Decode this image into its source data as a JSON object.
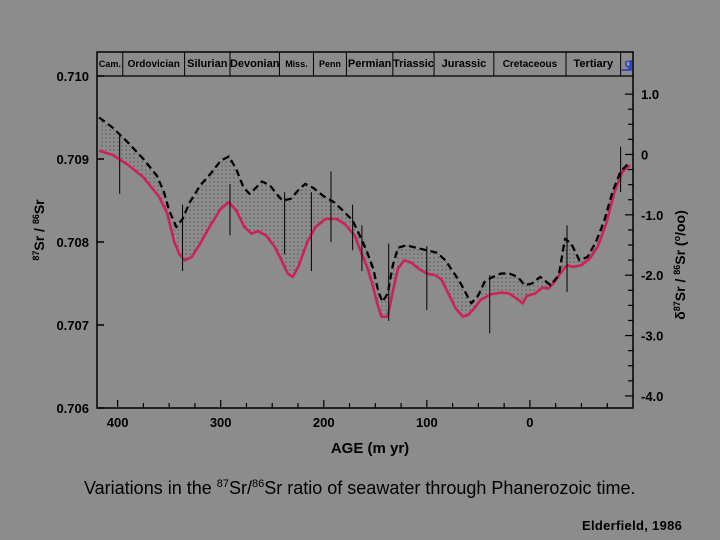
{
  "chart_data": {
    "type": "line",
    "xlabel": "AGE (m yr)",
    "x_ticks": [
      400,
      300,
      200,
      100,
      0
    ],
    "xlim": [
      420,
      -100
    ],
    "ylabel_left": {
      "pre": "87",
      "a": "Sr / ",
      "sup": "86",
      "b": "Sr"
    },
    "ylim_left": [
      0.706,
      0.71
    ],
    "y_ticks_left": [
      "0.710",
      "0.709",
      "0.708",
      "0.707",
      "0.706"
    ],
    "ylabel_right": {
      "delta": "δ",
      "sup1": "87",
      "a": "Sr / ",
      "sup2": "86",
      "b": "Sr (",
      "sup3": "o",
      "c": "/oo)"
    },
    "ylim_right": [
      -4.2,
      1.3
    ],
    "y_ticks_right": [
      "1.0",
      "0",
      "-1.0",
      "-2.0",
      "-3.0",
      "-4.0"
    ],
    "periods": [
      {
        "name": "Cam.",
        "start": 420,
        "end": 395
      },
      {
        "name": "Ordovician",
        "start": 395,
        "end": 335
      },
      {
        "name": "Silurian",
        "start": 335,
        "end": 291
      },
      {
        "name": "Devonian",
        "start": 291,
        "end": 243
      },
      {
        "name": "Miss.",
        "start": 243,
        "end": 210
      },
      {
        "name": "Penn",
        "start": 210,
        "end": 178
      },
      {
        "name": "Permian",
        "start": 178,
        "end": 133
      },
      {
        "name": "Triassic",
        "start": 133,
        "end": 93
      },
      {
        "name": "Jurassic",
        "start": 93,
        "end": 35
      },
      {
        "name": "Cretaceous",
        "start": 35,
        "end": -35
      },
      {
        "name": "Tertiary",
        "start": -35,
        "end": -88
      },
      {
        "name": "Q",
        "start": -88,
        "end": -100
      }
    ],
    "series": [
      {
        "name": "",
        "style": "solid",
        "color": "#cc2255",
        "points": [
          [
            418,
            0.7091
          ],
          [
            405,
            0.70905
          ],
          [
            390,
            0.70893
          ],
          [
            375,
            0.70878
          ],
          [
            360,
            0.70855
          ],
          [
            352,
            0.70835
          ],
          [
            345,
            0.708
          ],
          [
            340,
            0.70785
          ],
          [
            335,
            0.70778
          ],
          [
            328,
            0.70782
          ],
          [
            320,
            0.70798
          ],
          [
            310,
            0.7082
          ],
          [
            300,
            0.7084
          ],
          [
            292,
            0.70848
          ],
          [
            285,
            0.70838
          ],
          [
            277,
            0.70818
          ],
          [
            270,
            0.7081
          ],
          [
            264,
            0.70813
          ],
          [
            256,
            0.70808
          ],
          [
            248,
            0.70795
          ],
          [
            241,
            0.70778
          ],
          [
            235,
            0.70762
          ],
          [
            230,
            0.70758
          ],
          [
            224,
            0.70772
          ],
          [
            216,
            0.708
          ],
          [
            208,
            0.70818
          ],
          [
            198,
            0.70828
          ],
          [
            188,
            0.70828
          ],
          [
            180,
            0.70822
          ],
          [
            170,
            0.70808
          ],
          [
            163,
            0.70785
          ],
          [
            158,
            0.7077
          ],
          [
            153,
            0.7075
          ],
          [
            148,
            0.70725
          ],
          [
            144,
            0.7071
          ],
          [
            138,
            0.7071
          ],
          [
            133,
            0.7074
          ],
          [
            128,
            0.70768
          ],
          [
            122,
            0.70778
          ],
          [
            115,
            0.70775
          ],
          [
            108,
            0.70768
          ],
          [
            100,
            0.70762
          ],
          [
            92,
            0.7076
          ],
          [
            86,
            0.70755
          ],
          [
            80,
            0.7074
          ],
          [
            72,
            0.7072
          ],
          [
            65,
            0.7071
          ],
          [
            60,
            0.70712
          ],
          [
            54,
            0.7072
          ],
          [
            48,
            0.7073
          ],
          [
            38,
            0.70737
          ],
          [
            28,
            0.70739
          ],
          [
            20,
            0.70738
          ],
          [
            12,
            0.70731
          ],
          [
            7,
            0.70726
          ],
          [
            3,
            0.70735
          ],
          [
            -5,
            0.70738
          ],
          [
            -12,
            0.70745
          ],
          [
            -18,
            0.70744
          ],
          [
            -24,
            0.70752
          ],
          [
            -30,
            0.70763
          ],
          [
            -36,
            0.70772
          ],
          [
            -42,
            0.7077
          ],
          [
            -50,
            0.70772
          ],
          [
            -58,
            0.7078
          ],
          [
            -66,
            0.70795
          ],
          [
            -74,
            0.70822
          ],
          [
            -82,
            0.7086
          ],
          [
            -90,
            0.70885
          ],
          [
            -97,
            0.70892
          ]
        ]
      },
      {
        "name": "",
        "style": "dashed",
        "color": "#000000",
        "points": [
          [
            418,
            0.7095
          ],
          [
            405,
            0.70938
          ],
          [
            390,
            0.7092
          ],
          [
            375,
            0.709
          ],
          [
            362,
            0.7088
          ],
          [
            355,
            0.7086
          ],
          [
            350,
            0.70838
          ],
          [
            343,
            0.70818
          ],
          [
            337,
            0.70828
          ],
          [
            330,
            0.70848
          ],
          [
            320,
            0.70868
          ],
          [
            310,
            0.70882
          ],
          [
            300,
            0.70898
          ],
          [
            292,
            0.70903
          ],
          [
            285,
            0.70888
          ],
          [
            278,
            0.70866
          ],
          [
            272,
            0.70858
          ],
          [
            266,
            0.70865
          ],
          [
            260,
            0.70873
          ],
          [
            252,
            0.70868
          ],
          [
            246,
            0.70858
          ],
          [
            240,
            0.7085
          ],
          [
            232,
            0.70852
          ],
          [
            225,
            0.70862
          ],
          [
            218,
            0.7087
          ],
          [
            210,
            0.70865
          ],
          [
            200,
            0.70855
          ],
          [
            190,
            0.70848
          ],
          [
            180,
            0.70836
          ],
          [
            172,
            0.70826
          ],
          [
            164,
            0.70805
          ],
          [
            158,
            0.70788
          ],
          [
            152,
            0.70768
          ],
          [
            147,
            0.7074
          ],
          [
            143,
            0.70728
          ],
          [
            138,
            0.70738
          ],
          [
            133,
            0.70772
          ],
          [
            128,
            0.70793
          ],
          [
            120,
            0.70796
          ],
          [
            110,
            0.70793
          ],
          [
            100,
            0.7079
          ],
          [
            90,
            0.70787
          ],
          [
            82,
            0.70778
          ],
          [
            75,
            0.70765
          ],
          [
            68,
            0.70752
          ],
          [
            62,
            0.70738
          ],
          [
            57,
            0.70726
          ],
          [
            50,
            0.70736
          ],
          [
            44,
            0.70752
          ],
          [
            36,
            0.70758
          ],
          [
            28,
            0.70762
          ],
          [
            20,
            0.70762
          ],
          [
            12,
            0.70758
          ],
          [
            5,
            0.70748
          ],
          [
            -2,
            0.7075
          ],
          [
            -10,
            0.70758
          ],
          [
            -20,
            0.70748
          ],
          [
            -28,
            0.7076
          ],
          [
            -34,
            0.70804
          ],
          [
            -40,
            0.70798
          ],
          [
            -48,
            0.70778
          ],
          [
            -56,
            0.70782
          ],
          [
            -64,
            0.708
          ],
          [
            -72,
            0.70825
          ],
          [
            -80,
            0.7086
          ],
          [
            -88,
            0.70885
          ],
          [
            -96,
            0.70895
          ]
        ]
      }
    ],
    "error_bars": [
      [
        398,
        0.7093,
        0.70858
      ],
      [
        337,
        0.70845,
        0.70765
      ],
      [
        291,
        0.7087,
        0.70808
      ],
      [
        238,
        0.7086,
        0.70785
      ],
      [
        212,
        0.7086,
        0.70765
      ],
      [
        193,
        0.70885,
        0.708
      ],
      [
        172,
        0.70845,
        0.7079
      ],
      [
        163,
        0.7082,
        0.70765
      ],
      [
        137,
        0.70798,
        0.70705
      ],
      [
        100,
        0.70795,
        0.70718
      ],
      [
        39,
        0.7076,
        0.7069
      ],
      [
        -36,
        0.7082,
        0.7074
      ],
      [
        -88,
        0.70915,
        0.7086
      ]
    ]
  },
  "caption": {
    "a": "Variations in the ",
    "sup1": "87",
    "b": "Sr/",
    "sup2": "86",
    "c": "Sr ratio of seawater through Phanerozoic time."
  },
  "credit": "Elderfield, 1986"
}
